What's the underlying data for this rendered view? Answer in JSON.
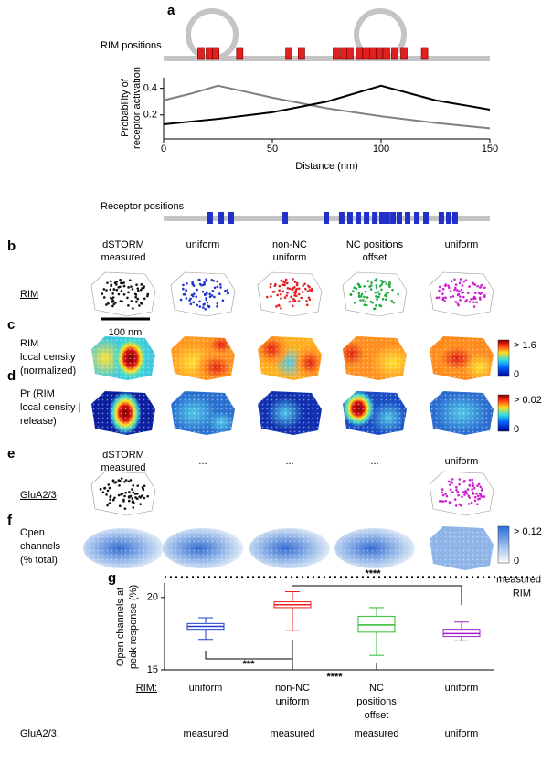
{
  "figure": {
    "panel_labels": [
      "a",
      "b",
      "c",
      "d",
      "e",
      "f",
      "g"
    ],
    "schematic": {
      "rim_label": "RIM positions",
      "receptor_label": "Receptor positions",
      "rim_positions": [
        17.2,
        21,
        24,
        35,
        57.6,
        63.4,
        79.4,
        82.8,
        85.7,
        90,
        93.3,
        96.2,
        99.2,
        102.5,
        106.3,
        110.5,
        120
      ],
      "receptor_positions": [
        21.4,
        26.5,
        31.1,
        55.9,
        74.8,
        81.9,
        85.7,
        89.5,
        93.3,
        97.1,
        100.4,
        102.9,
        105.5,
        108.4,
        112.2,
        116.4,
        120.6,
        127.7,
        131.1,
        134
      ]
    },
    "column_headers": [
      [
        "dSTORM",
        "measured"
      ],
      [
        "uniform"
      ],
      [
        "non-NC",
        "uniform"
      ],
      [
        "NC positions",
        "offset"
      ],
      [
        "uniform"
      ]
    ],
    "column_colors": [
      "#111111",
      "#2233cc",
      "#dd2222",
      "#22aa44",
      "#cc22cc"
    ],
    "row_labels": {
      "rim": "RIM",
      "density": [
        "RIM",
        "local density",
        "(normalized)"
      ],
      "pr": [
        "Pr (RIM",
        "local density |",
        "release)"
      ],
      "glua": "GluA2/3",
      "open": [
        "Open",
        "channels",
        "(% total)"
      ]
    },
    "scale_bar": "100 nm",
    "colorbars": [
      {
        "max": "> 1.6",
        "min": "0"
      },
      {
        "max": "> 0.02",
        "min": "0"
      },
      {
        "max": "> 0.12",
        "min": "0"
      }
    ],
    "row_e_headers": [
      [
        "dSTORM",
        "measured"
      ],
      [
        "..."
      ],
      [
        "..."
      ],
      [
        "..."
      ],
      [
        "uniform"
      ]
    ]
  },
  "chart_data": [
    {
      "type": "line",
      "y_label": [
        "Probability of",
        "receptor activation"
      ],
      "x_label": "Distance (nm)",
      "x": [
        0,
        12.5,
        25,
        50,
        75,
        100,
        125,
        150
      ],
      "series": [
        {
          "color": "#808080",
          "values": [
            0.31,
            0.36,
            0.42,
            0.33,
            0.25,
            0.19,
            0.14,
            0.1
          ]
        },
        {
          "color": "#000000",
          "values": [
            0.13,
            0.15,
            0.17,
            0.22,
            0.3,
            0.42,
            0.31,
            0.24
          ]
        }
      ],
      "xlim": [
        0,
        150
      ],
      "ylim": [
        0.02,
        0.48
      ],
      "xticks": [
        0,
        50,
        100,
        150
      ],
      "yticks": [
        0.2,
        0.4
      ]
    },
    {
      "type": "box",
      "y_label": [
        "Open channels at",
        "peak response (%)"
      ],
      "row_label": "RIM:",
      "categories": [
        [
          "uniform"
        ],
        [
          "non-NC",
          "uniform"
        ],
        [
          "NC",
          "positions",
          "offset"
        ],
        [
          "uniform"
        ]
      ],
      "colors": [
        "#1f3fcf",
        "#e8211f",
        "#2ebd2e",
        "#a020d0"
      ],
      "stats": [
        {
          "min": 17.1,
          "q1": 17.8,
          "median": 18.0,
          "q3": 18.2,
          "max": 18.6
        },
        {
          "min": 17.7,
          "q1": 19.3,
          "median": 19.5,
          "q3": 19.7,
          "max": 20.4
        },
        {
          "min": 16.0,
          "q1": 17.6,
          "median": 18.1,
          "q3": 18.7,
          "max": 19.3
        },
        {
          "min": 17.0,
          "q1": 17.3,
          "median": 17.5,
          "q3": 17.8,
          "max": 18.3
        }
      ],
      "ylim": [
        15,
        21
      ],
      "yticks": [
        15,
        20
      ],
      "reference": {
        "value": 21.4,
        "label": [
          "measured",
          "RIM"
        ]
      },
      "significance": [
        "***",
        "****",
        "****"
      ],
      "second_row": {
        "label": "GluA2/3:",
        "values": [
          "measured",
          "measured",
          "measured",
          "uniform"
        ]
      }
    }
  ]
}
